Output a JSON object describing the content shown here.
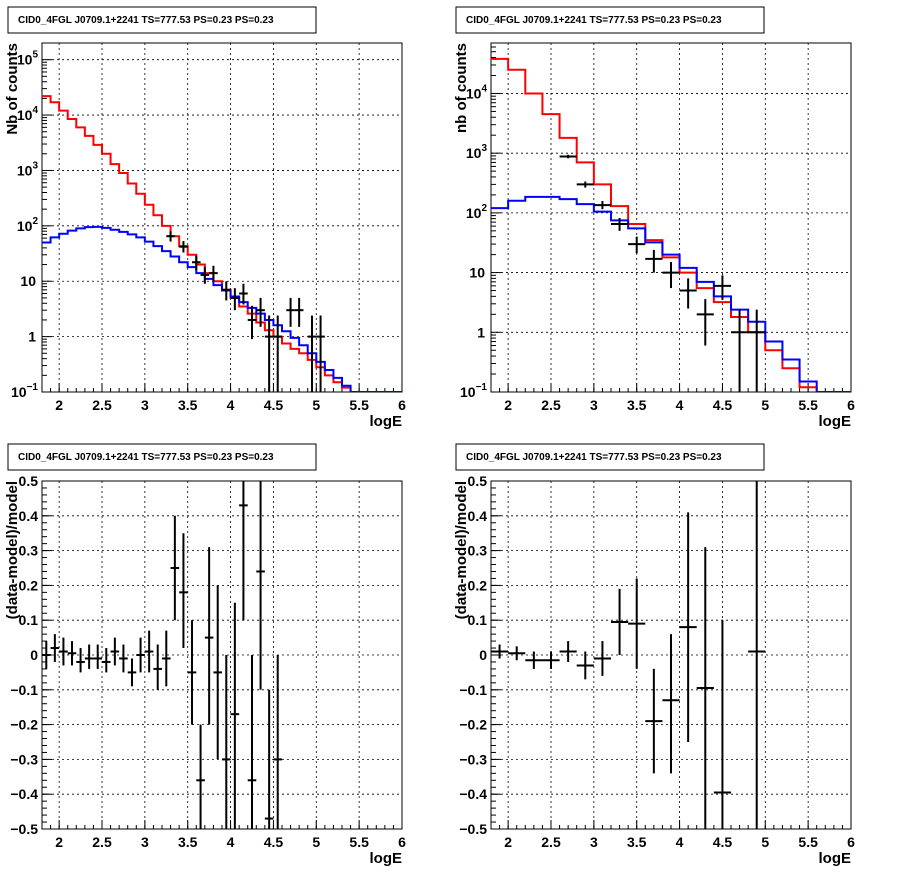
{
  "chart_data": [
    {
      "type": "line",
      "title": "CID0_4FGL J0709.1+2241 TS=777.53 PS=0.23 PS=0.23",
      "xlabel": "logE",
      "ylabel": "Nb of counts",
      "yscale": "log",
      "xlim": [
        1.8,
        6.0
      ],
      "ylim": [
        0.1,
        200000
      ],
      "grid": true,
      "xticks": [
        "2",
        "2.5",
        "3",
        "3.5",
        "4",
        "4.5",
        "5",
        "5.5",
        "6"
      ],
      "yticks": [
        {
          "v": 0.1,
          "m": "10",
          "e": "−1"
        },
        {
          "v": 1,
          "m": "1",
          "e": ""
        },
        {
          "v": 10,
          "m": "10",
          "e": ""
        },
        {
          "v": 100,
          "m": "10",
          "e": "2"
        },
        {
          "v": 1000,
          "m": "10",
          "e": "3"
        },
        {
          "v": 10000,
          "m": "10",
          "e": "4"
        },
        {
          "v": 100000,
          "m": "10",
          "e": "5"
        }
      ],
      "hist_series": [
        {
          "color": "#ff0000",
          "edges": [
            1.8,
            1.9,
            2.0,
            2.1,
            2.2,
            2.3,
            2.4,
            2.5,
            2.6,
            2.7,
            2.8,
            2.9,
            3.0,
            3.1,
            3.2,
            3.3,
            3.4,
            3.5,
            3.6,
            3.7,
            3.8,
            3.9,
            4.0,
            4.1,
            4.2,
            4.3,
            4.4,
            4.5,
            4.6,
            4.7,
            4.8,
            4.9,
            5.0,
            5.1,
            5.2,
            5.3,
            5.4,
            5.5,
            5.6,
            5.7,
            5.8,
            5.9,
            6.0
          ],
          "values": [
            22000,
            17000,
            12000,
            8500,
            6000,
            4200,
            2900,
            2000,
            1300,
            900,
            580,
            380,
            240,
            155,
            100,
            65,
            43,
            30,
            20,
            14,
            10,
            7,
            5,
            3.5,
            2.6,
            1.8,
            1.3,
            1.0,
            0.75,
            0.6,
            0.5,
            0.38,
            0.28,
            0.2,
            0.15,
            0.12,
            0.1,
            0.1,
            0.1,
            0.1,
            0.1,
            0.1
          ]
        },
        {
          "color": "#0000ff",
          "edges": [
            1.8,
            1.9,
            2.0,
            2.1,
            2.2,
            2.3,
            2.4,
            2.5,
            2.6,
            2.7,
            2.8,
            2.9,
            3.0,
            3.1,
            3.2,
            3.3,
            3.4,
            3.5,
            3.6,
            3.7,
            3.8,
            3.9,
            4.0,
            4.1,
            4.2,
            4.3,
            4.4,
            4.5,
            4.6,
            4.7,
            4.8,
            4.9,
            5.0,
            5.1,
            5.2,
            5.3,
            5.4,
            5.5,
            5.6,
            5.7,
            5.8,
            5.9,
            6.0
          ],
          "values": [
            50,
            62,
            72,
            82,
            90,
            95,
            96,
            92,
            85,
            78,
            70,
            62,
            52,
            43,
            35,
            28,
            22,
            18,
            14,
            11,
            8.5,
            6.8,
            5.3,
            4.2,
            3.3,
            2.6,
            2.0,
            1.6,
            1.25,
            0.95,
            0.7,
            0.5,
            0.35,
            0.25,
            0.18,
            0.13,
            0.1,
            0.1,
            0.1,
            0.1,
            0.1,
            0.1
          ]
        }
      ],
      "points": [
        {
          "x": 3.3,
          "y": 65,
          "ylo": 52,
          "yhi": 80
        },
        {
          "x": 3.45,
          "y": 42,
          "ylo": 33,
          "yhi": 53
        },
        {
          "x": 3.6,
          "y": 22,
          "ylo": 16,
          "yhi": 29
        },
        {
          "x": 3.7,
          "y": 13,
          "ylo": 9,
          "yhi": 18
        },
        {
          "x": 3.8,
          "y": 14,
          "ylo": 10,
          "yhi": 19
        },
        {
          "x": 3.95,
          "y": 7,
          "ylo": 4.5,
          "yhi": 10
        },
        {
          "x": 4.05,
          "y": 5,
          "ylo": 3,
          "yhi": 7.5
        },
        {
          "x": 4.15,
          "y": 6,
          "ylo": 3.8,
          "yhi": 9
        },
        {
          "x": 4.25,
          "y": 2,
          "ylo": 0.9,
          "yhi": 3.6
        },
        {
          "x": 4.35,
          "y": 3,
          "ylo": 1.5,
          "yhi": 5
        },
        {
          "x": 4.45,
          "y": 1,
          "ylo": 0.1,
          "yhi": 2.4
        },
        {
          "x": 4.55,
          "y": 1,
          "ylo": 0.1,
          "yhi": 2.4
        },
        {
          "x": 4.7,
          "y": 3,
          "ylo": 1.5,
          "yhi": 5
        },
        {
          "x": 4.8,
          "y": 3,
          "ylo": 1.5,
          "yhi": 5
        },
        {
          "x": 4.95,
          "y": 1,
          "ylo": 0.1,
          "yhi": 2.4
        },
        {
          "x": 5.05,
          "y": 1,
          "ylo": 0.1,
          "yhi": 2.4
        }
      ]
    },
    {
      "type": "line",
      "title": "CID0_4FGL J0709.1+2241 TS=777.53 PS=0.23 PS=0.23",
      "xlabel": "logE",
      "ylabel": "nb of counts",
      "yscale": "log",
      "xlim": [
        1.8,
        6.0
      ],
      "ylim": [
        0.1,
        70000
      ],
      "grid": true,
      "xticks": [
        "2",
        "2.5",
        "3",
        "3.5",
        "4",
        "4.5",
        "5",
        "5.5",
        "6"
      ],
      "yticks": [
        {
          "v": 0.1,
          "m": "10",
          "e": "−1"
        },
        {
          "v": 1,
          "m": "1",
          "e": ""
        },
        {
          "v": 10,
          "m": "10",
          "e": ""
        },
        {
          "v": 100,
          "m": "10",
          "e": "2"
        },
        {
          "v": 1000,
          "m": "10",
          "e": "3"
        },
        {
          "v": 10000,
          "m": "10",
          "e": "4"
        }
      ],
      "hist_series": [
        {
          "color": "#ff0000",
          "edges": [
            1.8,
            2.0,
            2.2,
            2.4,
            2.6,
            2.8,
            3.0,
            3.2,
            3.4,
            3.6,
            3.8,
            4.0,
            4.2,
            4.4,
            4.6,
            4.8,
            5.0,
            5.2,
            5.4,
            5.6,
            5.8,
            6.0
          ],
          "values": [
            38000,
            25000,
            10000,
            4500,
            1800,
            700,
            300,
            130,
            65,
            35,
            18,
            10,
            5.5,
            3.2,
            1.8,
            1.0,
            0.5,
            0.25,
            0.12,
            0.1,
            0.1
          ]
        },
        {
          "color": "#0000ff",
          "edges": [
            1.8,
            2.0,
            2.2,
            2.4,
            2.6,
            2.8,
            3.0,
            3.2,
            3.4,
            3.6,
            3.8,
            4.0,
            4.2,
            4.4,
            4.6,
            4.8,
            5.0,
            5.2,
            5.4,
            5.6,
            5.8,
            6.0
          ],
          "values": [
            120,
            160,
            185,
            185,
            170,
            140,
            105,
            75,
            55,
            32,
            20,
            12,
            7,
            4,
            2.4,
            1.5,
            0.7,
            0.35,
            0.15,
            0.1,
            0.1
          ]
        }
      ],
      "points": [
        {
          "x": 2.7,
          "y": 880,
          "ylo": 820,
          "yhi": 940
        },
        {
          "x": 2.9,
          "y": 300,
          "ylo": 265,
          "yhi": 335
        },
        {
          "x": 3.1,
          "y": 135,
          "ylo": 115,
          "yhi": 158
        },
        {
          "x": 3.3,
          "y": 65,
          "ylo": 50,
          "yhi": 82
        },
        {
          "x": 3.5,
          "y": 30,
          "ylo": 21,
          "yhi": 40
        },
        {
          "x": 3.7,
          "y": 17,
          "ylo": 10,
          "yhi": 24
        },
        {
          "x": 3.9,
          "y": 10,
          "ylo": 5.5,
          "yhi": 15
        },
        {
          "x": 4.1,
          "y": 5,
          "ylo": 2.5,
          "yhi": 8
        },
        {
          "x": 4.3,
          "y": 2,
          "ylo": 0.6,
          "yhi": 3.6
        },
        {
          "x": 4.5,
          "y": 6,
          "ylo": 3.5,
          "yhi": 9
        },
        {
          "x": 4.7,
          "y": 1,
          "ylo": 0.1,
          "yhi": 2.4
        },
        {
          "x": 4.9,
          "y": 1,
          "ylo": 0.1,
          "yhi": 2.4
        }
      ]
    },
    {
      "type": "scatter",
      "title": "CID0_4FGL J0709.1+2241 TS=777.53 PS=0.23 PS=0.23",
      "xlabel": "logE",
      "ylabel": "(data-model)/model",
      "yscale": "linear",
      "xlim": [
        1.8,
        6.0
      ],
      "ylim": [
        -0.5,
        0.5
      ],
      "grid": true,
      "xticks": [
        "2",
        "2.5",
        "3",
        "3.5",
        "4",
        "4.5",
        "5",
        "5.5",
        "6"
      ],
      "yticks_linear": [
        "−0.5",
        "−0.4",
        "−0.3",
        "−0.2",
        "−0.1",
        "0",
        "0.1",
        "0.2",
        "0.3",
        "0.4",
        "0.5"
      ],
      "points": [
        {
          "x": 1.85,
          "y": 0.0,
          "ylo": -0.04,
          "yhi": 0.04
        },
        {
          "x": 1.95,
          "y": 0.02,
          "ylo": -0.02,
          "yhi": 0.06
        },
        {
          "x": 2.05,
          "y": 0.01,
          "ylo": -0.03,
          "yhi": 0.05
        },
        {
          "x": 2.15,
          "y": 0.005,
          "ylo": -0.03,
          "yhi": 0.04
        },
        {
          "x": 2.25,
          "y": -0.02,
          "ylo": -0.05,
          "yhi": 0.02
        },
        {
          "x": 2.35,
          "y": -0.01,
          "ylo": -0.04,
          "yhi": 0.03
        },
        {
          "x": 2.45,
          "y": -0.01,
          "ylo": -0.04,
          "yhi": 0.03
        },
        {
          "x": 2.55,
          "y": -0.02,
          "ylo": -0.05,
          "yhi": 0.02
        },
        {
          "x": 2.65,
          "y": 0.01,
          "ylo": -0.03,
          "yhi": 0.05
        },
        {
          "x": 2.75,
          "y": -0.01,
          "ylo": -0.05,
          "yhi": 0.03
        },
        {
          "x": 2.85,
          "y": -0.05,
          "ylo": -0.09,
          "yhi": -0.01
        },
        {
          "x": 2.95,
          "y": 0.0,
          "ylo": -0.05,
          "yhi": 0.05
        },
        {
          "x": 3.05,
          "y": 0.01,
          "ylo": -0.05,
          "yhi": 0.07
        },
        {
          "x": 3.15,
          "y": -0.04,
          "ylo": -0.1,
          "yhi": 0.03
        },
        {
          "x": 3.25,
          "y": -0.01,
          "ylo": -0.09,
          "yhi": 0.07
        },
        {
          "x": 3.35,
          "y": 0.25,
          "ylo": 0.1,
          "yhi": 0.4
        },
        {
          "x": 3.45,
          "y": 0.18,
          "ylo": 0.02,
          "yhi": 0.35
        },
        {
          "x": 3.55,
          "y": -0.05,
          "ylo": -0.2,
          "yhi": 0.1
        },
        {
          "x": 3.65,
          "y": -0.36,
          "ylo": -0.5,
          "yhi": -0.2
        },
        {
          "x": 3.75,
          "y": 0.05,
          "ylo": -0.2,
          "yhi": 0.31
        },
        {
          "x": 3.85,
          "y": -0.05,
          "ylo": -0.3,
          "yhi": 0.2
        },
        {
          "x": 3.95,
          "y": -0.3,
          "ylo": -0.5,
          "yhi": 0.0
        },
        {
          "x": 4.05,
          "y": -0.17,
          "ylo": -0.5,
          "yhi": 0.15
        },
        {
          "x": 4.15,
          "y": 0.43,
          "ylo": 0.1,
          "yhi": 0.5
        },
        {
          "x": 4.25,
          "y": -0.36,
          "ylo": -0.5,
          "yhi": 0.0
        },
        {
          "x": 4.35,
          "y": 0.24,
          "ylo": -0.1,
          "yhi": 0.5
        },
        {
          "x": 4.45,
          "y": -0.47,
          "ylo": -0.5,
          "yhi": -0.1
        },
        {
          "x": 4.55,
          "y": -0.3,
          "ylo": -0.5,
          "yhi": 0.0
        }
      ]
    },
    {
      "type": "scatter",
      "title": "CID0_4FGL J0709.1+2241 TS=777.53 PS=0.23 PS=0.23",
      "xlabel": "logE",
      "ylabel": "(data-model)/model",
      "yscale": "linear",
      "xlim": [
        1.8,
        6.0
      ],
      "ylim": [
        -0.5,
        0.5
      ],
      "grid": true,
      "xticks": [
        "2",
        "2.5",
        "3",
        "3.5",
        "4",
        "4.5",
        "5",
        "5.5",
        "6"
      ],
      "yticks_linear": [
        "−0.5",
        "−0.4",
        "−0.3",
        "−0.2",
        "−0.1",
        "0",
        "0.1",
        "0.2",
        "0.3",
        "0.4",
        "0.5"
      ],
      "points": [
        {
          "x": 1.9,
          "y": 0.01,
          "ylo": -0.01,
          "yhi": 0.03
        },
        {
          "x": 2.1,
          "y": 0.005,
          "ylo": -0.015,
          "yhi": 0.025
        },
        {
          "x": 2.3,
          "y": -0.015,
          "ylo": -0.04,
          "yhi": 0.01
        },
        {
          "x": 2.5,
          "y": -0.015,
          "ylo": -0.04,
          "yhi": 0.01
        },
        {
          "x": 2.7,
          "y": 0.01,
          "ylo": -0.02,
          "yhi": 0.04
        },
        {
          "x": 2.9,
          "y": -0.03,
          "ylo": -0.07,
          "yhi": 0.01
        },
        {
          "x": 3.1,
          "y": -0.01,
          "ylo": -0.06,
          "yhi": 0.04
        },
        {
          "x": 3.3,
          "y": 0.095,
          "ylo": 0.0,
          "yhi": 0.19
        },
        {
          "x": 3.5,
          "y": 0.09,
          "ylo": -0.04,
          "yhi": 0.22
        },
        {
          "x": 3.7,
          "y": -0.19,
          "ylo": -0.34,
          "yhi": -0.04
        },
        {
          "x": 3.9,
          "y": -0.13,
          "ylo": -0.34,
          "yhi": 0.06
        },
        {
          "x": 4.1,
          "y": 0.08,
          "ylo": -0.25,
          "yhi": 0.41
        },
        {
          "x": 4.3,
          "y": -0.095,
          "ylo": -0.5,
          "yhi": 0.31
        },
        {
          "x": 4.5,
          "y": -0.395,
          "ylo": -0.5,
          "yhi": 0.1
        },
        {
          "x": 4.9,
          "y": 0.01,
          "ylo": -0.5,
          "yhi": 0.5
        }
      ]
    }
  ]
}
